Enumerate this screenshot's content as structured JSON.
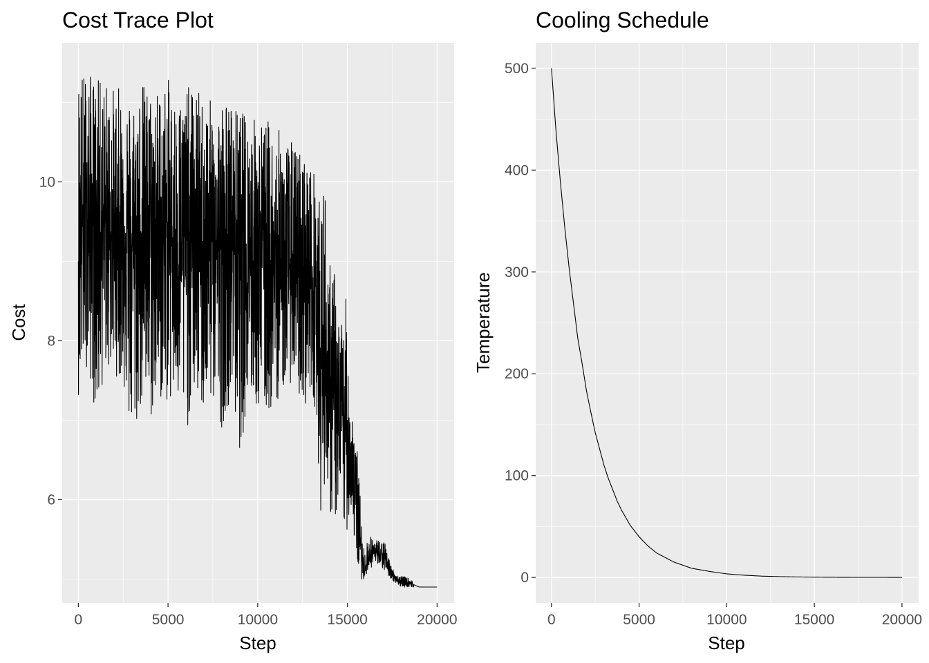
{
  "chart_data": [
    {
      "type": "line",
      "title": "Cost Trace Plot",
      "xlabel": "Step",
      "ylabel": "Cost",
      "xlim": [
        -900,
        20950
      ],
      "ylim": [
        4.7,
        11.75
      ],
      "x_ticks": [
        0,
        5000,
        10000,
        15000,
        20000
      ],
      "y_ticks": [
        6,
        8,
        10
      ],
      "grid": true,
      "series": [
        {
          "color": "#000000",
          "x": [
            0,
            500,
            1000,
            1500,
            2000,
            2500,
            3000,
            3500,
            4000,
            4500,
            5000,
            5500,
            6000,
            6500,
            7000,
            7500,
            8000,
            8500,
            9000,
            9500,
            10000,
            10500,
            11000,
            11500,
            12000,
            12500,
            13000,
            13300,
            13500,
            13700,
            14000,
            14300,
            14600,
            14900,
            15200,
            15500,
            15700,
            15900,
            16200,
            16500,
            16800,
            17100,
            17400,
            17700,
            18000,
            18500,
            19000,
            19500,
            20000
          ],
          "y": [
            9.3,
            9.6,
            9.4,
            9.5,
            9.3,
            9.4,
            9.2,
            9.4,
            9.3,
            9.3,
            9.4,
            9.2,
            9.3,
            9.3,
            9.2,
            9.3,
            9.1,
            9.2,
            9.2,
            9.0,
            9.1,
            9.0,
            8.9,
            9.0,
            8.8,
            8.8,
            8.7,
            8.6,
            7.6,
            8.0,
            7.4,
            7.2,
            7.0,
            6.9,
            6.6,
            6.0,
            5.6,
            5.05,
            5.3,
            5.35,
            5.3,
            5.25,
            5.1,
            5.0,
            4.95,
            4.95,
            4.9,
            4.9,
            4.9
          ],
          "upper_envelope": [
            11.5,
            11.4,
            11.3,
            11.3,
            11.2,
            11.2,
            11.1,
            11.3,
            11.2,
            11.2,
            11.3,
            11.1,
            11.2,
            11.2,
            11.1,
            11.0,
            11.1,
            11.0,
            10.9,
            10.9,
            10.8,
            10.8,
            10.7,
            10.6,
            10.5,
            10.4,
            10.2,
            10.1,
            9.6,
            10.2,
            9.0,
            8.9,
            8.2,
            8.6,
            7.3,
            6.8,
            6.1,
            5.4,
            5.55,
            5.5,
            5.5,
            5.45,
            5.2,
            5.05,
            5.05,
            5.0,
            4.9,
            4.9,
            4.9
          ],
          "lower_envelope": [
            7.3,
            7.7,
            7.0,
            7.6,
            7.6,
            7.4,
            6.6,
            7.1,
            6.9,
            7.2,
            7.2,
            7.1,
            6.8,
            7.3,
            7.0,
            7.2,
            6.9,
            7.3,
            6.6,
            7.2,
            7.1,
            7.0,
            7.2,
            7.4,
            7.5,
            7.1,
            7.4,
            7.0,
            5.7,
            6.2,
            5.8,
            5.7,
            5.8,
            5.5,
            5.9,
            5.2,
            5.0,
            5.0,
            5.1,
            5.2,
            5.15,
            5.1,
            5.0,
            4.95,
            4.9,
            4.9,
            4.9,
            4.9,
            4.9
          ]
        }
      ]
    },
    {
      "type": "line",
      "title": "Cooling Schedule",
      "xlabel": "Step",
      "ylabel": "Temperature",
      "xlim": [
        -900,
        20950
      ],
      "ylim": [
        -25,
        525
      ],
      "x_ticks": [
        0,
        5000,
        10000,
        15000,
        20000
      ],
      "y_ticks": [
        0,
        100,
        200,
        300,
        400,
        500
      ],
      "grid": true,
      "series": [
        {
          "color": "#000000",
          "x": [
            0,
            250,
            500,
            750,
            1000,
            1250,
            1500,
            1750,
            2000,
            2250,
            2500,
            2750,
            3000,
            3250,
            3500,
            3750,
            4000,
            4500,
            5000,
            5500,
            6000,
            7000,
            8000,
            9000,
            10000,
            11000,
            12000,
            13000,
            14000,
            15000,
            16000,
            17000,
            18000,
            19000,
            20000
          ],
          "y": [
            500,
            440,
            390,
            345,
            305,
            270,
            235,
            210,
            183,
            162,
            142,
            126,
            110,
            97,
            86,
            75,
            66,
            51,
            40,
            31,
            24,
            15,
            9,
            6,
            3.5,
            2.2,
            1.3,
            0.8,
            0.5,
            0.3,
            0.2,
            0.1,
            0.1,
            0.1,
            0
          ]
        }
      ]
    }
  ]
}
